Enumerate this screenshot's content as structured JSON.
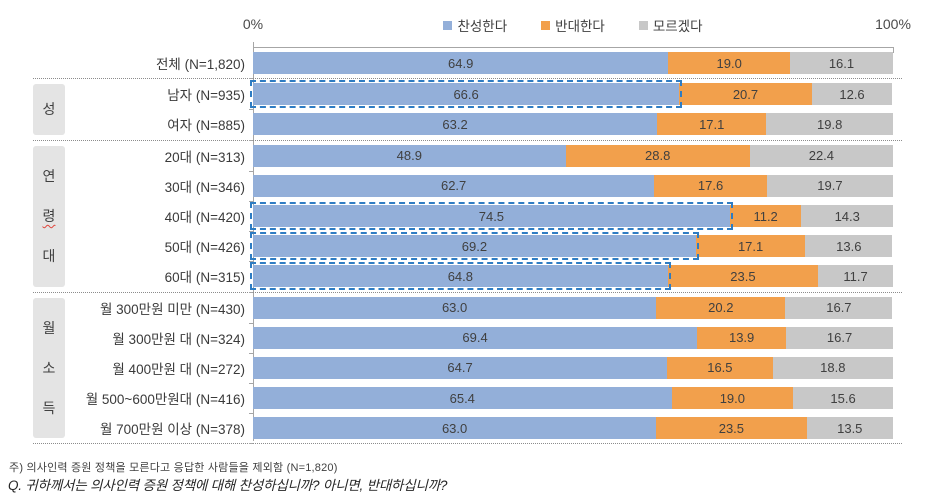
{
  "axis": {
    "left_label": "0%",
    "right_label": "100%"
  },
  "legend": [
    {
      "label": "찬성한다",
      "color": "#93afd9"
    },
    {
      "label": "반대한다",
      "color": "#f2a04c"
    },
    {
      "label": "모르겠다",
      "color": "#c8c8c8"
    }
  ],
  "chart_data": {
    "type": "bar",
    "orientation": "horizontal",
    "stacked": true,
    "unit": "%",
    "xlim": [
      0,
      100
    ],
    "series_names": [
      "찬성한다",
      "반대한다",
      "모르겠다"
    ],
    "groups": [
      {
        "label": "",
        "rows": [
          {
            "label": "전체 (N=1,820)",
            "values": [
              64.9,
              19.0,
              16.1
            ],
            "highlight": false
          }
        ]
      },
      {
        "label": "성",
        "rows": [
          {
            "label": "남자 (N=935)",
            "values": [
              66.6,
              20.7,
              12.6
            ],
            "highlight": true
          },
          {
            "label": "여자 (N=885)",
            "values": [
              63.2,
              17.1,
              19.8
            ],
            "highlight": false
          }
        ]
      },
      {
        "label": "연령대",
        "squiggle_char_index": 1,
        "rows": [
          {
            "label": "20대 (N=313)",
            "values": [
              48.9,
              28.8,
              22.4
            ],
            "highlight": false
          },
          {
            "label": "30대 (N=346)",
            "values": [
              62.7,
              17.6,
              19.7
            ],
            "highlight": false
          },
          {
            "label": "40대 (N=420)",
            "values": [
              74.5,
              11.2,
              14.3
            ],
            "highlight": true
          },
          {
            "label": "50대 (N=426)",
            "values": [
              69.2,
              17.1,
              13.6
            ],
            "highlight": true
          },
          {
            "label": "60대 (N=315)",
            "values": [
              64.8,
              23.5,
              11.7
            ],
            "highlight": true
          }
        ]
      },
      {
        "label": "월소득",
        "rows": [
          {
            "label": "월 300만원 미만 (N=430)",
            "values": [
              63.0,
              20.2,
              16.7
            ],
            "highlight": false
          },
          {
            "label": "월 300만원 대 (N=324)",
            "values": [
              69.4,
              13.9,
              16.7
            ],
            "highlight": false
          },
          {
            "label": "월 400만원 대 (N=272)",
            "values": [
              64.7,
              16.5,
              18.8
            ],
            "highlight": false
          },
          {
            "label": "월 500~600만원대 (N=416)",
            "values": [
              65.4,
              19.0,
              15.6
            ],
            "highlight": false
          },
          {
            "label": "월 700만원 이상 (N=378)",
            "values": [
              63.0,
              23.5,
              13.5
            ],
            "highlight": false
          }
        ]
      }
    ]
  },
  "footnotes": {
    "note": "주) 의사인력 증원 정책을 모른다고 응답한 사람들을 제외함  (N=1,820)",
    "question": "Q. 귀하께서는 의사인력 증원 정책에 대해 찬성하십니까? 아니면, 반대하십니까?"
  }
}
